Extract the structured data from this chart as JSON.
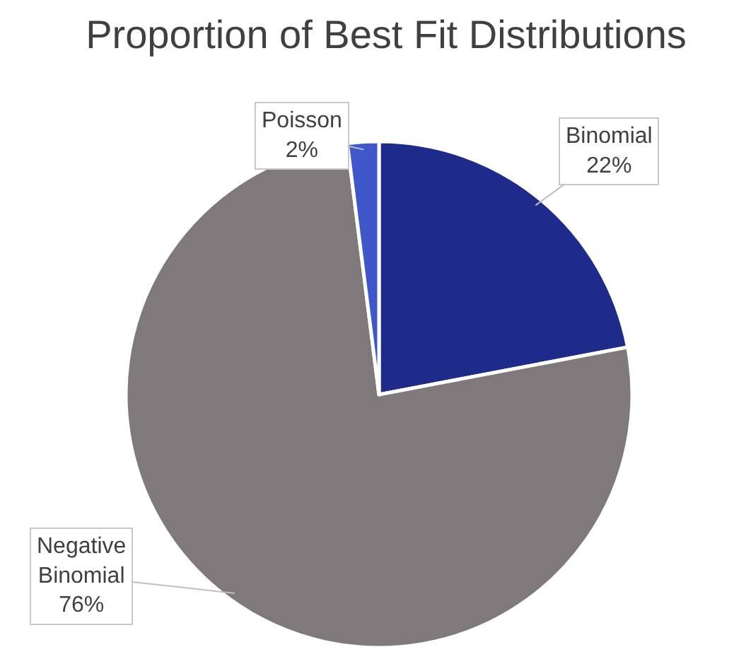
{
  "chart_data": {
    "type": "pie",
    "title": "Proportion of Best Fit Distributions",
    "categories": [
      "Binomial",
      "Negative Binomial",
      "Poisson"
    ],
    "values": [
      22,
      76,
      2
    ],
    "value_labels": [
      "22%",
      "76%",
      "2%"
    ],
    "colors": [
      "#1f2b8a",
      "#80797b",
      "#3f57c9"
    ]
  }
}
